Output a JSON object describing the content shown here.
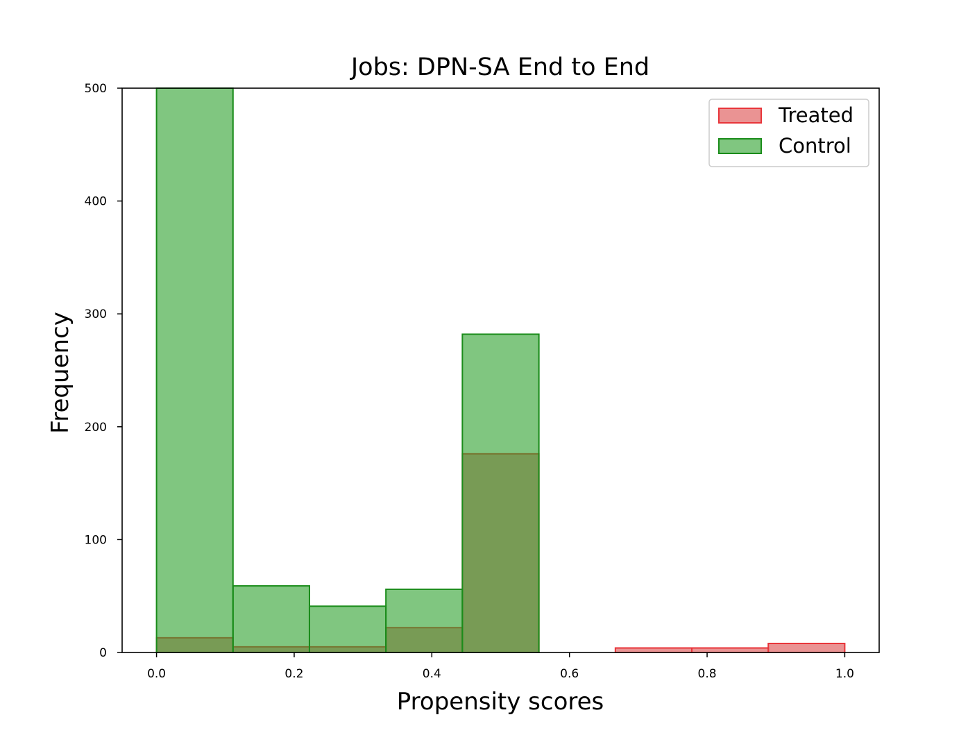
{
  "chart_data": {
    "type": "bar",
    "title": "Jobs: DPN-SA End to End",
    "xlabel": "Propensity scores",
    "ylabel": "Frequency",
    "xlim": [
      -0.05,
      1.05
    ],
    "ylim": [
      0,
      500
    ],
    "xticks": [
      0.0,
      0.2,
      0.4,
      0.6,
      0.8,
      1.0
    ],
    "xtick_labels": [
      "0.0",
      "0.2",
      "0.4",
      "0.6",
      "0.8",
      "1.0"
    ],
    "yticks": [
      0,
      100,
      200,
      300,
      400,
      500
    ],
    "ytick_labels": [
      "0",
      "100",
      "200",
      "300",
      "400",
      "500"
    ],
    "bin_edges": [
      0.0,
      0.1111,
      0.2222,
      0.3333,
      0.4444,
      0.5556,
      0.6667,
      0.7778,
      0.8889,
      1.0
    ],
    "grid": false,
    "legend_position": "top-right",
    "series": [
      {
        "name": "Treated",
        "values": [
          13,
          5,
          5,
          22,
          176,
          0,
          4,
          4,
          8
        ],
        "fill": "#d62728",
        "fill_opacity": 0.5,
        "edge": "#e8353a"
      },
      {
        "name": "Control",
        "values": [
          500,
          59,
          41,
          56,
          282,
          0,
          0,
          0,
          0
        ],
        "fill": "#2ca02c",
        "fill_opacity": 0.6,
        "edge": "#1a8c1a"
      }
    ]
  }
}
